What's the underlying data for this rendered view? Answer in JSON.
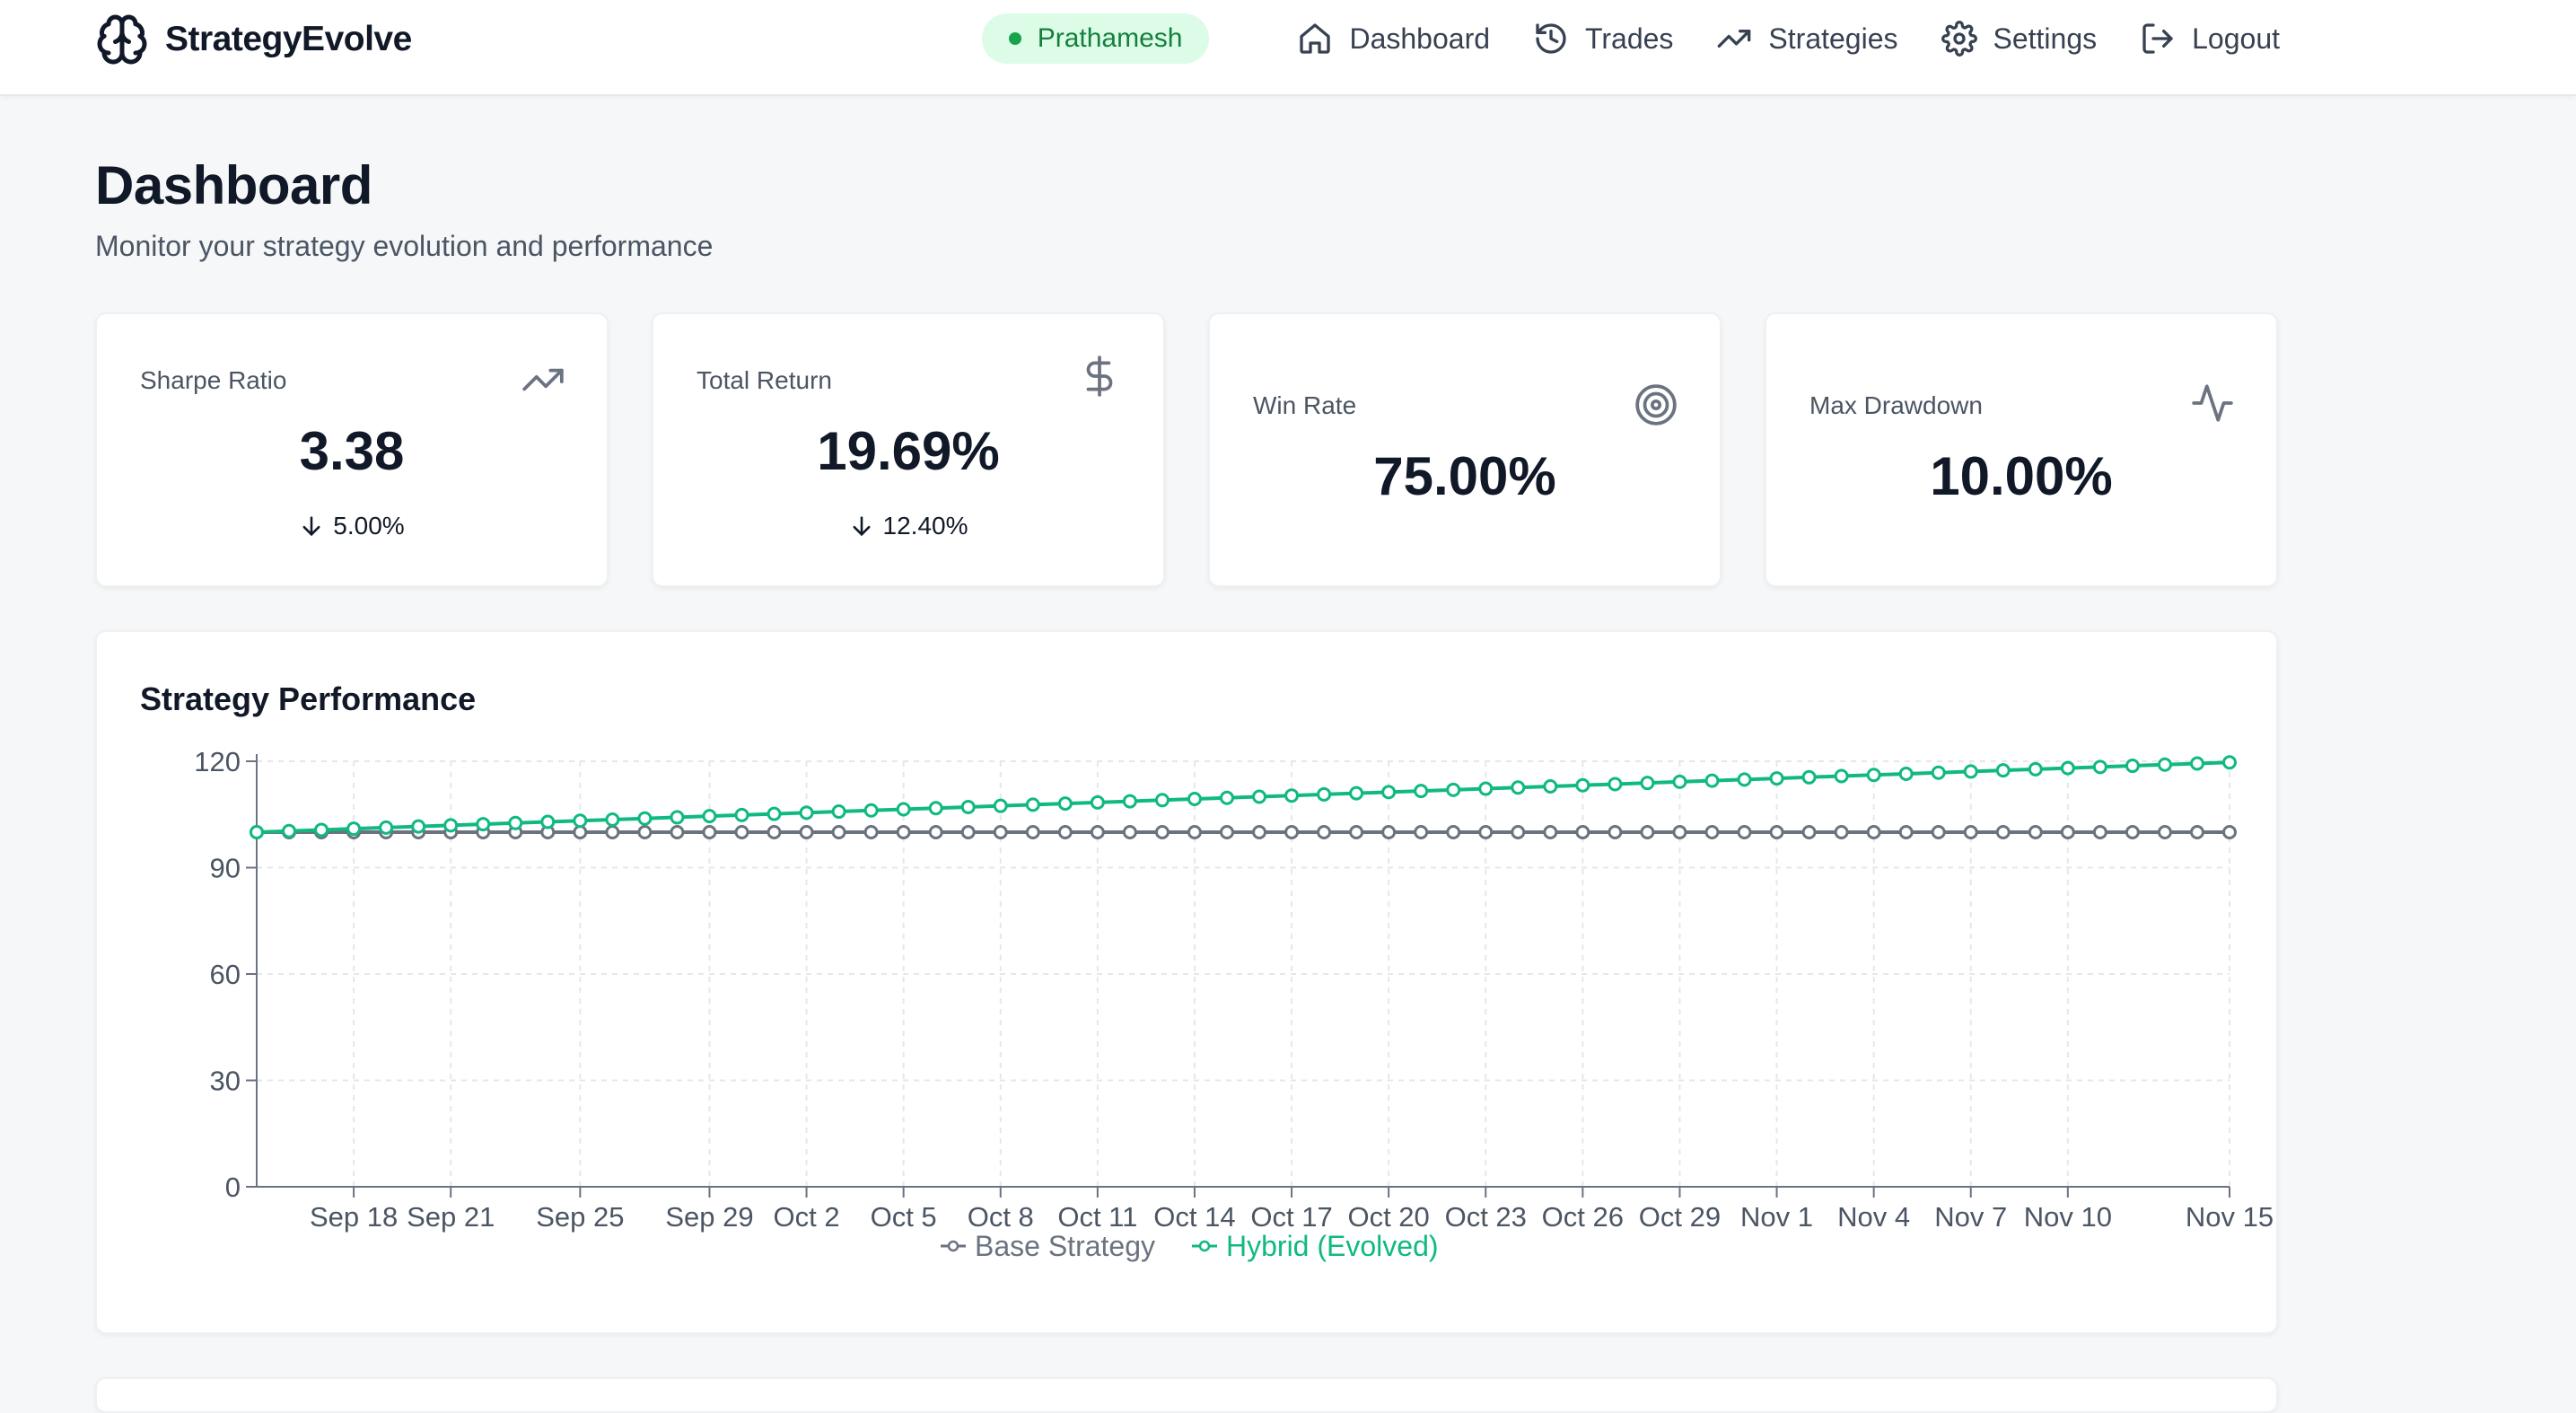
{
  "app": {
    "name": "StrategyEvolve"
  },
  "nav": {
    "user": "Prathamesh",
    "items": [
      {
        "label": "Dashboard",
        "icon": "home-icon"
      },
      {
        "label": "Trades",
        "icon": "history-icon"
      },
      {
        "label": "Strategies",
        "icon": "trending-up-icon"
      },
      {
        "label": "Settings",
        "icon": "gear-icon"
      },
      {
        "label": "Logout",
        "icon": "logout-icon"
      }
    ]
  },
  "page": {
    "title": "Dashboard",
    "subtitle": "Monitor your strategy evolution and performance"
  },
  "metrics": [
    {
      "label": "Sharpe Ratio",
      "value": "3.38",
      "change": "5.00%",
      "icon": "trending-up-icon"
    },
    {
      "label": "Total Return",
      "value": "19.69%",
      "change": "12.40%",
      "icon": "dollar-icon"
    },
    {
      "label": "Win Rate",
      "value": "75.00%",
      "change": "",
      "icon": "target-icon"
    },
    {
      "label": "Max Drawdown",
      "value": "10.00%",
      "change": "",
      "icon": "activity-icon"
    }
  ],
  "colors": {
    "accent": "#10b981",
    "base": "#6b7280",
    "pill_bg": "#dcfce7",
    "pill_text": "#15803d"
  },
  "chart_data": {
    "type": "line",
    "title": "Strategy Performance",
    "x_range": [
      "Sep 15",
      "Nov 15"
    ],
    "ylim": [
      0,
      120
    ],
    "yticks": [
      0,
      30,
      60,
      90,
      120
    ],
    "xtick_labels": [
      "Sep 18",
      "Sep 21",
      "Sep 25",
      "Sep 29",
      "Oct 2",
      "Oct 5",
      "Oct 8",
      "Oct 11",
      "Oct 14",
      "Oct 17",
      "Oct 20",
      "Oct 23",
      "Oct 26",
      "Oct 29",
      "Nov 1",
      "Nov 4",
      "Nov 7",
      "Nov 10",
      "Nov 15"
    ],
    "grid": true,
    "legend": "bottom",
    "series": [
      {
        "name": "Base Strategy",
        "color": "#6b7280",
        "start": 100,
        "end": 100
      },
      {
        "name": "Hybrid (Evolved)",
        "color": "#10b981",
        "start": 100,
        "end": 119.69
      }
    ]
  }
}
